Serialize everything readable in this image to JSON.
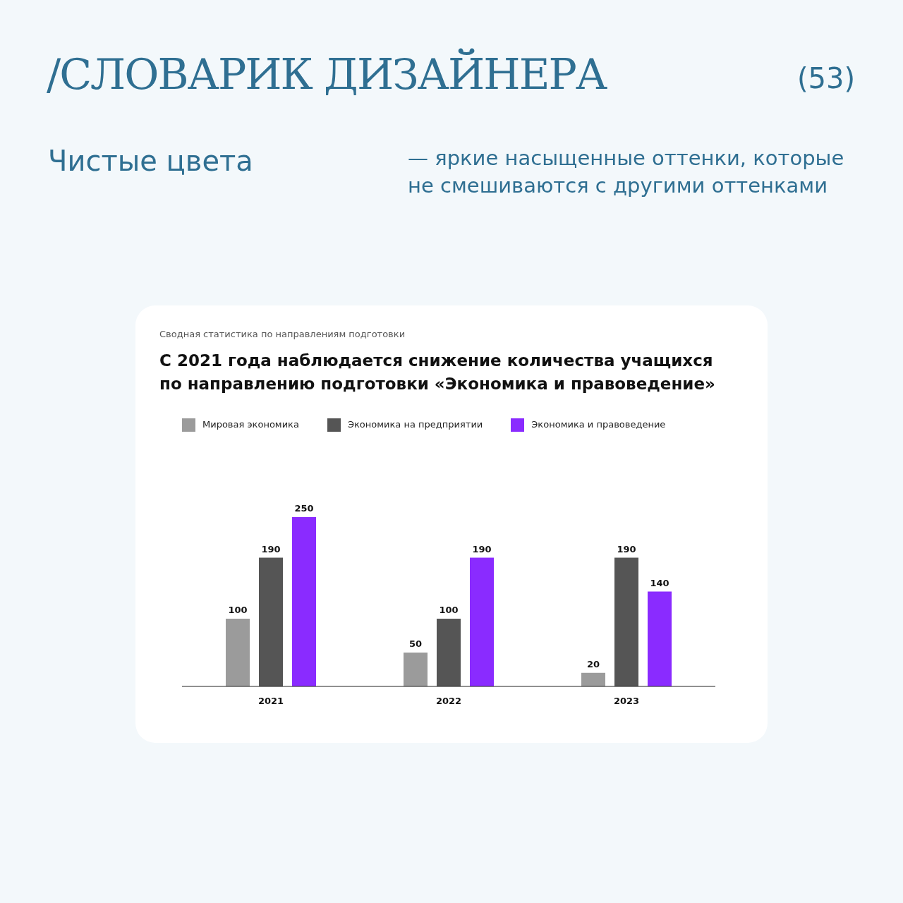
{
  "chart_data": {
    "type": "bar",
    "title": "С 2021 года наблюдается снижение количества учащихся по направлению подготовки «Экономика и правоведение»",
    "subtitle": "Сводная статистика по направлениям подготовки",
    "annotations": [
      "/СЛОВАРИК ДИЗАЙНЕРА",
      "(53)",
      "Чистые цвета",
      "— яркие насыщенные оттенки, которые не смешиваются с другими оттенками"
    ],
    "categories": [
      "2021",
      "2022",
      "2023"
    ],
    "series": [
      {
        "name": "Мировая экономика",
        "color": "#9b9b9b",
        "values": [
          100,
          50,
          20
        ]
      },
      {
        "name": "Экономика на предприятии",
        "color": "#555555",
        "values": [
          190,
          100,
          190
        ]
      },
      {
        "name": "Экономика и правоведение",
        "color": "#8a2bff",
        "values": [
          250,
          190,
          140
        ]
      }
    ],
    "data_labels": true,
    "legend": "top left",
    "grid": false
  }
}
